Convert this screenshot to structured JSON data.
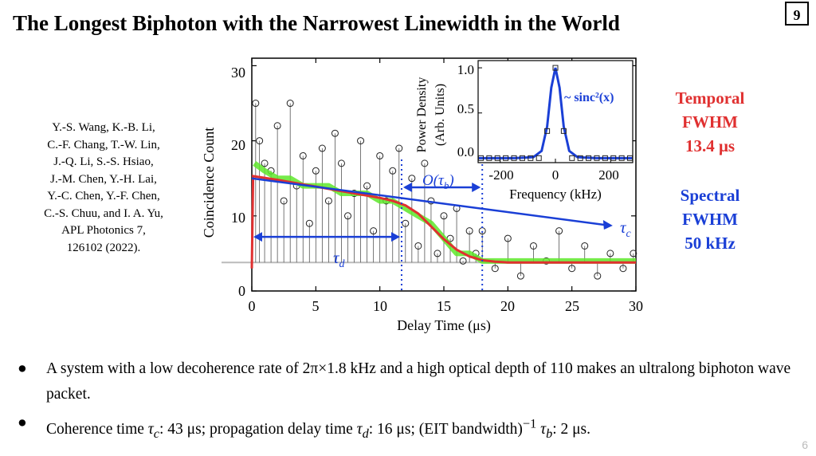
{
  "title": "The Longest Biphoton with the Narrowest Linewidth in the World",
  "slide_badge": "9",
  "citation": [
    "Y.-S. Wang, K.-B. Li,",
    "C.-F. Chang, T.-W. Lin,",
    "J.-Q. Li, S.-S. Hsiao,",
    "J.-M. Chen, Y.-H. Lai,",
    "Y.-C. Chen, Y.-F. Chen,",
    "C.-S. Chuu, and I. A. Yu,",
    "APL Photonics 7,",
    "126102 (2022)."
  ],
  "temporal": [
    "Temporal",
    "FWHM",
    "13.4 μs"
  ],
  "spectral": [
    "Spectral",
    "FWHM",
    "50 kHz"
  ],
  "bullets": {
    "b1": "A system with a low decoherence rate of 2π×1.8 kHz and a high optical depth of 110 makes an ultralong biphoton wave packet.",
    "b2_pre": "Coherence time ",
    "b2_tc": "τ",
    "b2_tc_sub": "c",
    "b2_mid1": ": 43 μs; propagation delay time ",
    "b2_td": "τ",
    "b2_td_sub": "d",
    "b2_mid2": ": 16 μs; (EIT bandwidth)",
    "b2_sup": "−1",
    "b2_tb": "τ",
    "b2_tb_sub": "b",
    "b2_end": ": 2 μs."
  },
  "page_number": "6",
  "annotations": {
    "tau": "τ",
    "d": "d",
    "c": "c",
    "O_label": "O(τ",
    "b": "b",
    "O_close": ")",
    "sinc": "~ sinc²(x)"
  },
  "colors": {
    "red": "#e03030",
    "blue": "#1a3fd6",
    "green": "#5ee82a",
    "grey": "#bbbbbb"
  },
  "chart_data": [
    {
      "type": "scatter",
      "xlabel": "Delay Time (μs)",
      "ylabel": "Coincidence Count",
      "xlim": [
        0,
        30
      ],
      "ylim": [
        0,
        31
      ],
      "x_ticks": [
        "0",
        "5",
        "10",
        "15",
        "20",
        "25",
        "30"
      ],
      "y_ticks": [
        "0",
        "10",
        "20",
        "30"
      ],
      "series": [
        {
          "style": "open circles with vertical lines",
          "x": [
            0.3,
            0.6,
            1.0,
            1.5,
            2.0,
            2.5,
            3.0,
            3.5,
            4.0,
            4.5,
            5.0,
            5.5,
            6.0,
            6.5,
            7.0,
            7.5,
            8.0,
            8.5,
            9.0,
            9.5,
            10.0,
            10.5,
            11.0,
            11.5,
            12.0,
            12.5,
            13.0,
            13.5,
            14.0,
            14.5,
            15.0,
            15.5,
            16.0,
            16.5,
            17.0,
            17.5,
            18.0,
            19.0,
            20.0,
            21.0,
            22.0,
            23.0,
            24.0,
            25.0,
            26.0,
            27.0,
            28.0,
            29.0,
            29.8
          ],
          "y": [
            25,
            20,
            17,
            16,
            22,
            12,
            25,
            14,
            18,
            9,
            16,
            19,
            12,
            21,
            17,
            10,
            13,
            20,
            14,
            8,
            18,
            12,
            16,
            19,
            9,
            15,
            6,
            17,
            12,
            5,
            10,
            7,
            11,
            4,
            8,
            5,
            8,
            3,
            7,
            2,
            6,
            4,
            8,
            3,
            6,
            2,
            5,
            3,
            5
          ]
        },
        {
          "name": "",
          "style": "green noisy line",
          "x": [
            0.2,
            1,
            2,
            3,
            4,
            5,
            6,
            7,
            8,
            9,
            10,
            11,
            12,
            13,
            14,
            15,
            16,
            17,
            18,
            19,
            20,
            22,
            24,
            26,
            28,
            30
          ],
          "y": [
            17,
            16,
            15,
            15,
            14,
            14,
            14,
            13,
            13,
            13,
            12,
            12,
            11,
            10,
            9,
            7,
            5,
            5,
            4,
            4,
            4,
            4,
            4,
            4,
            4,
            4
          ]
        },
        {
          "style": "red fit",
          "x": [
            0,
            0.1,
            2,
            4,
            6,
            8,
            10,
            11,
            12,
            13,
            14,
            15,
            16,
            17,
            18,
            19,
            20,
            22,
            25,
            30
          ],
          "y": [
            3,
            15.3,
            14.8,
            14.2,
            13.6,
            13.0,
            12.4,
            12.0,
            11.4,
            10.3,
            8.6,
            6.9,
            5.5,
            4.6,
            4.1,
            3.9,
            3.8,
            3.8,
            3.8,
            3.8
          ]
        }
      ],
      "annotations": {
        "tau_d_arrow": [
          0,
          11.7
        ],
        "tau_b_lines": [
          11.7,
          18.0
        ],
        "tau_c_line": [
          [
            0,
            15
          ],
          [
            28,
            8.7
          ]
        ],
        "baseline_grey": 3.8
      }
    },
    {
      "type": "line",
      "xlabel": "Frequency (kHz)",
      "ylabel": "Power Density (Arb. Units)",
      "xlim": [
        -280,
        280
      ],
      "ylim": [
        -0.05,
        1.08
      ],
      "x_ticks": [
        "-200",
        "0",
        "200"
      ],
      "y_ticks": [
        "0.0",
        "0.5",
        "1.0"
      ],
      "series": [
        {
          "style": "blue line",
          "x": [
            -280,
            -150,
            -80,
            -50,
            -30,
            -15,
            0,
            15,
            30,
            50,
            80,
            150,
            280
          ],
          "y": [
            0,
            0,
            0.01,
            0.08,
            0.35,
            0.78,
            1.0,
            0.78,
            0.35,
            0.08,
            0.01,
            0,
            0
          ]
        },
        {
          "style": "open squares",
          "x": [
            -270,
            -240,
            -210,
            -180,
            -150,
            -120,
            -90,
            -60,
            -30,
            0,
            30,
            60,
            90,
            120,
            150,
            180,
            210,
            240,
            270
          ],
          "y": [
            0,
            0,
            0,
            0,
            0,
            0,
            0,
            0,
            0.3,
            1.0,
            0.3,
            0,
            0,
            0,
            0,
            0,
            0,
            0,
            0
          ]
        }
      ]
    }
  ]
}
